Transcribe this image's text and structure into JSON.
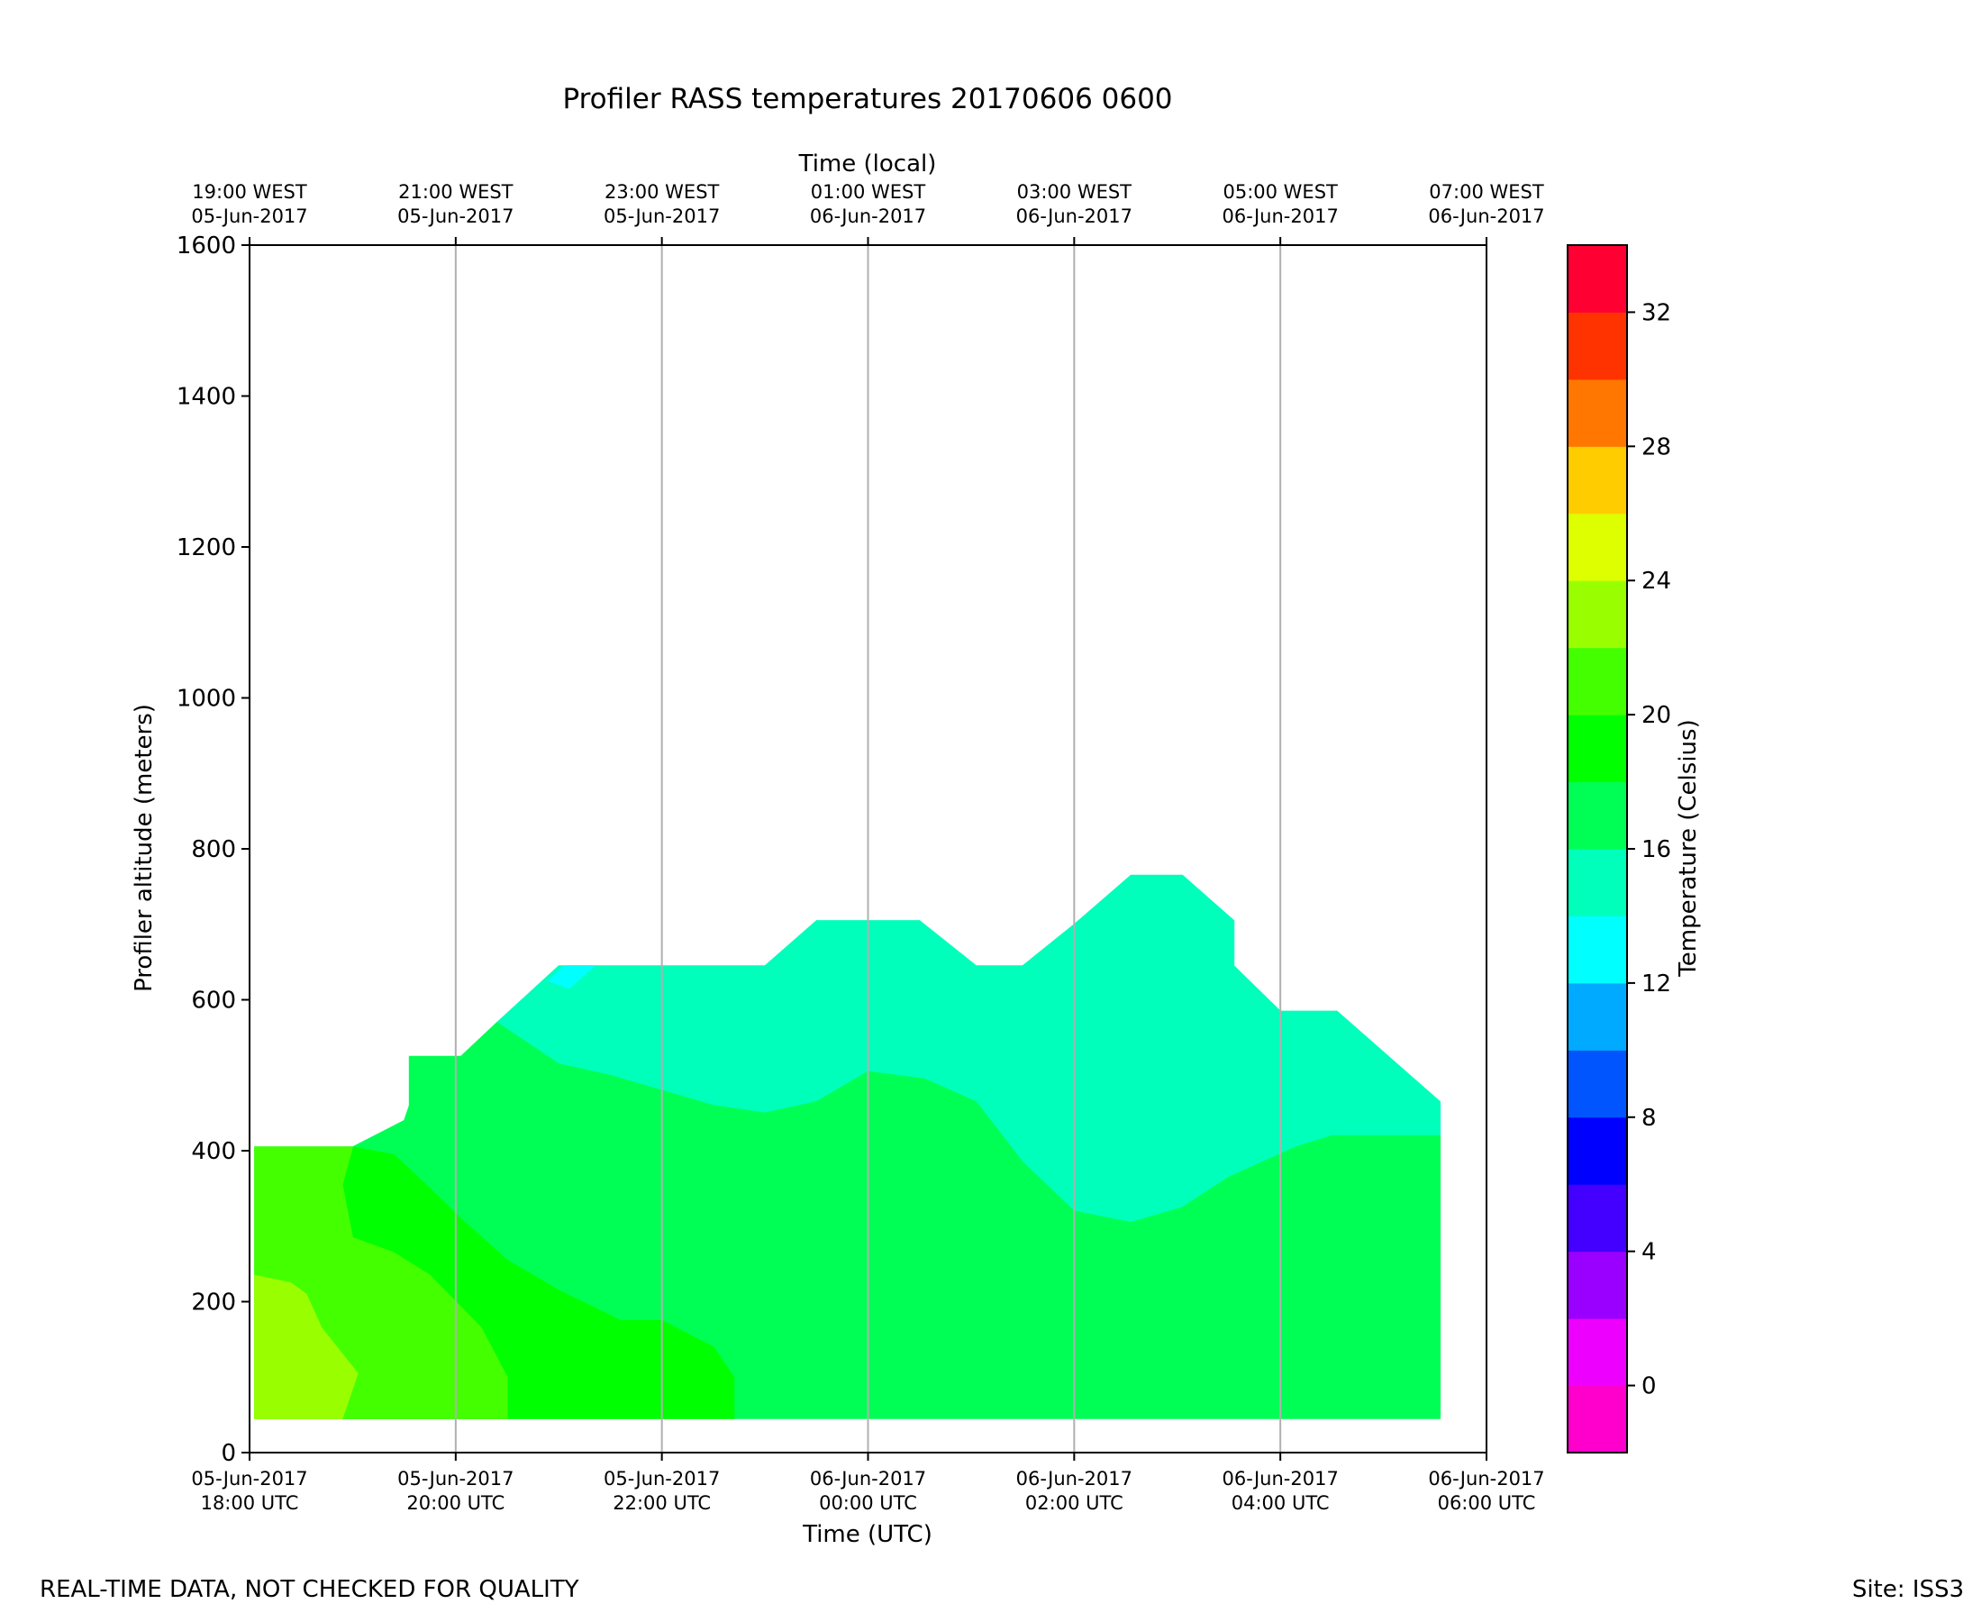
{
  "chart_data": {
    "type": "heatmap",
    "subtype": "filled-contour",
    "title": "Profiler RASS temperatures 20170606 0600",
    "xlabel": "Time (UTC)",
    "xlabel_top": "Time (local)",
    "ylabel": "Profiler altitude (meters)",
    "xlim_hours_utc": [
      18,
      30
    ],
    "ylim": [
      0,
      1600
    ],
    "yticks": [
      0,
      200,
      400,
      600,
      800,
      1000,
      1200,
      1400,
      1600
    ],
    "x_ticks": [
      {
        "hour": 18,
        "bottom": [
          "05-Jun-2017",
          "18:00 UTC"
        ],
        "top": [
          "19:00 WEST",
          "05-Jun-2017"
        ]
      },
      {
        "hour": 20,
        "bottom": [
          "05-Jun-2017",
          "20:00 UTC"
        ],
        "top": [
          "21:00 WEST",
          "05-Jun-2017"
        ]
      },
      {
        "hour": 22,
        "bottom": [
          "05-Jun-2017",
          "22:00 UTC"
        ],
        "top": [
          "23:00 WEST",
          "05-Jun-2017"
        ]
      },
      {
        "hour": 24,
        "bottom": [
          "06-Jun-2017",
          "00:00 UTC"
        ],
        "top": [
          "01:00 WEST",
          "06-Jun-2017"
        ]
      },
      {
        "hour": 26,
        "bottom": [
          "06-Jun-2017",
          "02:00 UTC"
        ],
        "top": [
          "03:00 WEST",
          "06-Jun-2017"
        ]
      },
      {
        "hour": 28,
        "bottom": [
          "06-Jun-2017",
          "04:00 UTC"
        ],
        "top": [
          "05:00 WEST",
          "06-Jun-2017"
        ]
      },
      {
        "hour": 30,
        "bottom": [
          "06-Jun-2017",
          "06:00 UTC"
        ],
        "top": [
          "07:00 WEST",
          "06-Jun-2017"
        ]
      }
    ],
    "grid": "vertical",
    "colorbar": {
      "label": "Temperature (Celsius)",
      "range": [
        -2,
        34
      ],
      "ticks": [
        0,
        4,
        8,
        12,
        16,
        20,
        24,
        28,
        32
      ],
      "bands": [
        {
          "from": -2,
          "to": 0,
          "color": "#ff00cc"
        },
        {
          "from": 0,
          "to": 2,
          "color": "#ee00ff"
        },
        {
          "from": 2,
          "to": 4,
          "color": "#9900ff"
        },
        {
          "from": 4,
          "to": 6,
          "color": "#4400ff"
        },
        {
          "from": 6,
          "to": 8,
          "color": "#0000ff"
        },
        {
          "from": 8,
          "to": 10,
          "color": "#0055ff"
        },
        {
          "from": 10,
          "to": 12,
          "color": "#00aaff"
        },
        {
          "from": 12,
          "to": 14,
          "color": "#00ffff"
        },
        {
          "from": 14,
          "to": 16,
          "color": "#00ffbb"
        },
        {
          "from": 16,
          "to": 18,
          "color": "#00ff55"
        },
        {
          "from": 18,
          "to": 20,
          "color": "#00ff00"
        },
        {
          "from": 20,
          "to": 22,
          "color": "#44ff00"
        },
        {
          "from": 22,
          "to": 24,
          "color": "#99ff00"
        },
        {
          "from": 24,
          "to": 26,
          "color": "#ddff00"
        },
        {
          "from": 26,
          "to": 28,
          "color": "#ffcc00"
        },
        {
          "from": 28,
          "to": 30,
          "color": "#ff7700"
        },
        {
          "from": 30,
          "to": 32,
          "color": "#ff3300"
        },
        {
          "from": 32,
          "to": 34,
          "color": "#ff0033"
        }
      ]
    },
    "regions": [
      {
        "name": "temp-14-16-region",
        "band": "14-16",
        "color": "#00ffbb",
        "points": [
          [
            20.4,
            570
          ],
          [
            21.0,
            645
          ],
          [
            22.0,
            645
          ],
          [
            23.0,
            645
          ],
          [
            23.5,
            705
          ],
          [
            24.5,
            705
          ],
          [
            25.05,
            645
          ],
          [
            25.5,
            645
          ],
          [
            26.0,
            700
          ],
          [
            26.55,
            765
          ],
          [
            27.05,
            765
          ],
          [
            27.55,
            705
          ],
          [
            27.55,
            645
          ],
          [
            28.0,
            585
          ],
          [
            28.55,
            585
          ],
          [
            29.55,
            465
          ],
          [
            29.55,
            420
          ],
          [
            28.5,
            420
          ],
          [
            28.15,
            405
          ],
          [
            27.5,
            365
          ],
          [
            27.05,
            325
          ],
          [
            26.55,
            305
          ],
          [
            26.0,
            320
          ],
          [
            25.5,
            385
          ],
          [
            25.05,
            465
          ],
          [
            24.55,
            495
          ],
          [
            24.0,
            505
          ],
          [
            23.5,
            465
          ],
          [
            23.0,
            450
          ],
          [
            22.5,
            460
          ],
          [
            22.0,
            480
          ],
          [
            21.5,
            500
          ],
          [
            21.0,
            515
          ],
          [
            20.4,
            570
          ]
        ]
      },
      {
        "name": "temp-12-14-region",
        "band": "12-14",
        "color": "#00ffff",
        "points": [
          [
            20.9,
            625
          ],
          [
            21.05,
            645
          ],
          [
            21.35,
            645
          ],
          [
            21.1,
            615
          ],
          [
            20.9,
            625
          ]
        ]
      },
      {
        "name": "temp-16-18-region",
        "band": "16-18",
        "color": "#00ff55",
        "points": [
          [
            18.05,
            45
          ],
          [
            29.55,
            45
          ],
          [
            29.55,
            420
          ],
          [
            28.5,
            420
          ],
          [
            28.15,
            405
          ],
          [
            27.5,
            365
          ],
          [
            27.05,
            325
          ],
          [
            26.55,
            305
          ],
          [
            26.0,
            320
          ],
          [
            25.5,
            385
          ],
          [
            25.05,
            465
          ],
          [
            24.55,
            495
          ],
          [
            24.0,
            505
          ],
          [
            23.5,
            465
          ],
          [
            23.0,
            450
          ],
          [
            22.5,
            460
          ],
          [
            22.0,
            480
          ],
          [
            21.5,
            500
          ],
          [
            21.0,
            515
          ],
          [
            20.4,
            570
          ],
          [
            20.05,
            525
          ],
          [
            19.55,
            525
          ],
          [
            19.55,
            460
          ],
          [
            19.5,
            440
          ],
          [
            19.0,
            405
          ],
          [
            18.05,
            405
          ],
          [
            18.05,
            45
          ]
        ]
      },
      {
        "name": "temp-18-20-region",
        "band": "18-20",
        "color": "#00ff00",
        "points": [
          [
            18.9,
            45
          ],
          [
            22.7,
            45
          ],
          [
            22.7,
            100
          ],
          [
            22.5,
            140
          ],
          [
            22.0,
            175
          ],
          [
            21.6,
            175
          ],
          [
            21.0,
            215
          ],
          [
            20.5,
            255
          ],
          [
            20.05,
            310
          ],
          [
            19.75,
            350
          ],
          [
            19.4,
            395
          ],
          [
            19.0,
            405
          ],
          [
            18.9,
            355
          ],
          [
            18.9,
            45
          ]
        ]
      },
      {
        "name": "temp-20-22-region",
        "band": "20-22",
        "color": "#44ff00",
        "points": [
          [
            18.05,
            45
          ],
          [
            20.5,
            45
          ],
          [
            20.5,
            100
          ],
          [
            20.25,
            165
          ],
          [
            19.75,
            235
          ],
          [
            19.4,
            265
          ],
          [
            19.0,
            285
          ],
          [
            18.9,
            355
          ],
          [
            19.0,
            405
          ],
          [
            18.05,
            405
          ],
          [
            18.05,
            45
          ]
        ]
      },
      {
        "name": "temp-22-24-region",
        "band": "22-24",
        "color": "#99ff00",
        "points": [
          [
            18.05,
            45
          ],
          [
            18.9,
            45
          ],
          [
            19.05,
            105
          ],
          [
            18.7,
            165
          ],
          [
            18.55,
            210
          ],
          [
            18.4,
            225
          ],
          [
            18.05,
            235
          ],
          [
            18.05,
            45
          ]
        ]
      }
    ]
  },
  "footer": {
    "left": "REAL-TIME DATA, NOT CHECKED FOR QUALITY",
    "right": "Site: ISS3"
  }
}
